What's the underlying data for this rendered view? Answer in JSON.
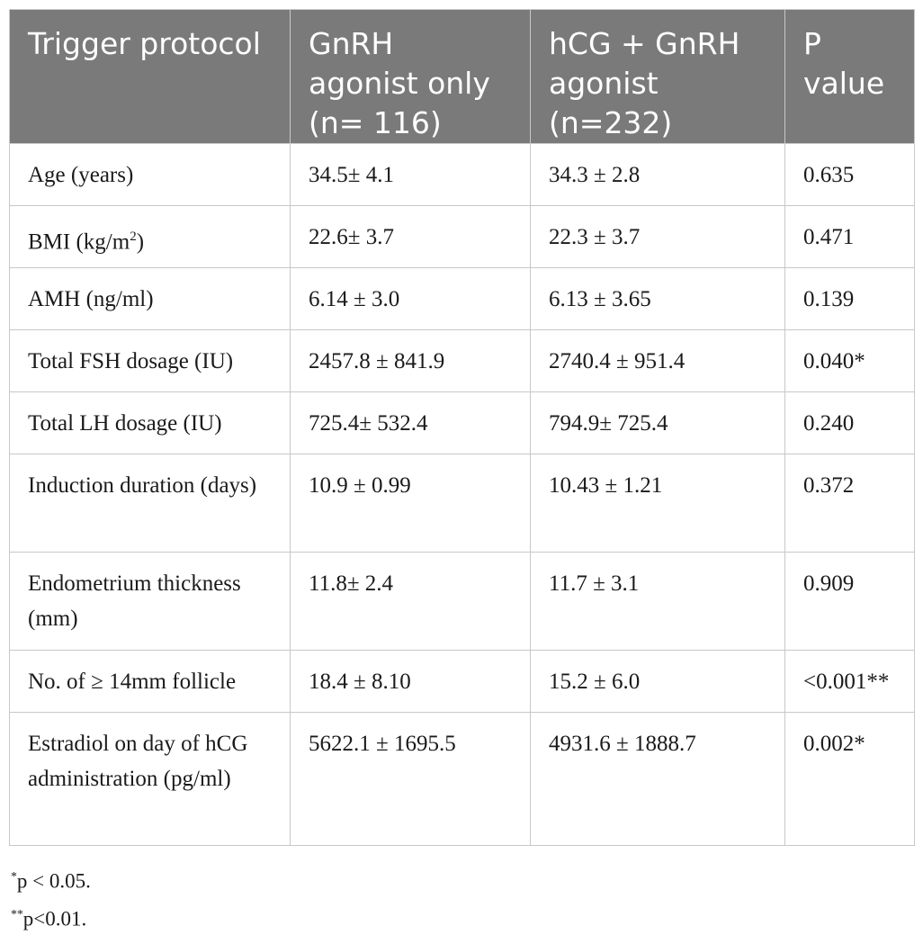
{
  "headers": [
    "Trigger protocol",
    "GnRH agonist only (n= 116)",
    "hCG + GnRH agonist (n=232)",
    "P value"
  ],
  "rows": [
    {
      "label": "Age (years)",
      "gnrh": "34.5± 4.1",
      "hcg": "34.3 ± 2.8",
      "p": "0.635"
    },
    {
      "label_pre": "BMI (kg/m",
      "label_sup": "2",
      "label_post": ")",
      "gnrh": "22.6± 3.7",
      "hcg": "22.3 ± 3.7",
      "p": "0.471"
    },
    {
      "label": "AMH (ng/ml)",
      "gnrh": "6.14 ± 3.0",
      "hcg": "6.13 ± 3.65",
      "p": "0.139"
    },
    {
      "label": "Total FSH dosage (IU)",
      "gnrh": "2457.8 ± 841.9",
      "hcg": "2740.4 ± 951.4",
      "p": "0.040*"
    },
    {
      "label": "Total LH dosage (IU)",
      "gnrh": "725.4± 532.4",
      "hcg": "794.9± 725.4",
      "p": "0.240"
    },
    {
      "label": "Induction duration (days)",
      "gnrh": "10.9 ± 0.99",
      "hcg": "10.43 ± 1.21",
      "p": "0.372"
    },
    {
      "label": "Endometrium thickness (mm)",
      "gnrh": "11.8± 2.4",
      "hcg": "11.7 ± 3.1",
      "p": "0.909"
    },
    {
      "label": "No. of ≥ 14mm follicle",
      "gnrh": "18.4 ± 8.10",
      "hcg": "15.2 ± 6.0",
      "p": "<0.001**"
    },
    {
      "label": "Estradiol on day of hCG administration (pg/ml)",
      "gnrh": "5622.1 ± 1695.5",
      "hcg": "4931.6 ± 1888.7",
      "p": "0.002*"
    }
  ],
  "footnotes": {
    "f1_mark": "*",
    "f1_text": "p < 0.05.",
    "f2_mark": "**",
    "f2_text": "p<0.01."
  }
}
